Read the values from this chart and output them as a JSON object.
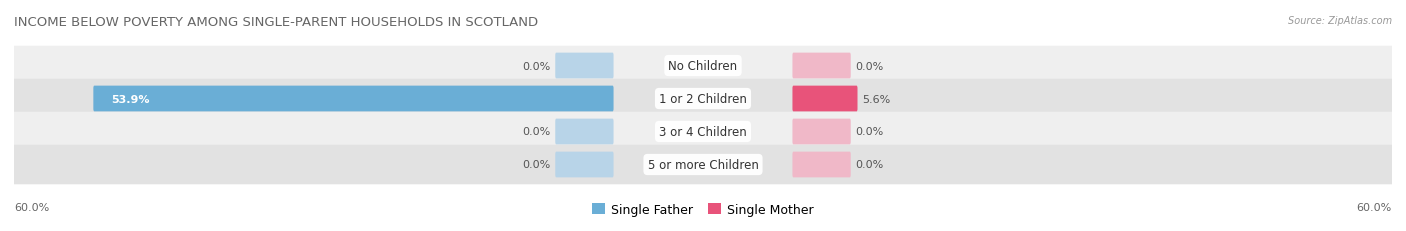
{
  "title": "INCOME BELOW POVERTY AMONG SINGLE-PARENT HOUSEHOLDS IN SCOTLAND",
  "source": "Source: ZipAtlas.com",
  "categories": [
    "No Children",
    "1 or 2 Children",
    "3 or 4 Children",
    "5 or more Children"
  ],
  "single_father": [
    0.0,
    53.9,
    0.0,
    0.0
  ],
  "single_mother": [
    0.0,
    5.6,
    0.0,
    0.0
  ],
  "father_color_active": "#6aaed6",
  "father_color_inactive": "#b8d4e8",
  "mother_color_active": "#e8537a",
  "mother_color_inactive": "#f0b8c8",
  "row_bg_light": "#efefef",
  "row_bg_dark": "#e2e2e2",
  "max_value": 60.0,
  "axis_label_left": "60.0%",
  "axis_label_right": "60.0%",
  "title_fontsize": 9.5,
  "label_fontsize": 8,
  "cat_fontsize": 8.5,
  "legend_fontsize": 9,
  "figsize": [
    14.06,
    2.32
  ],
  "dpi": 100
}
